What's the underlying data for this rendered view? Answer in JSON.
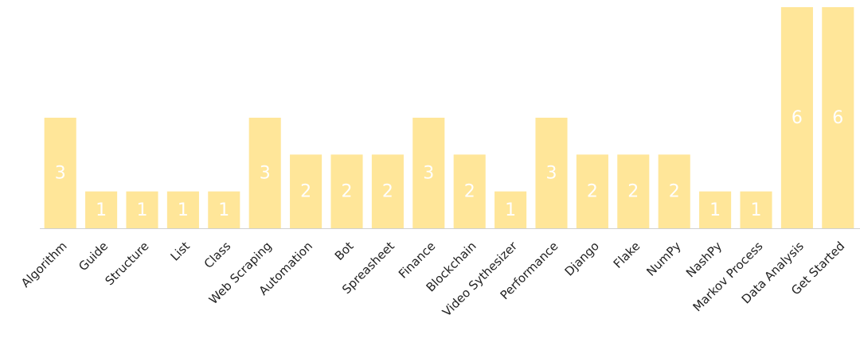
{
  "chart_data": {
    "type": "bar",
    "categories": [
      "Algorithm",
      "Guide",
      "Structure",
      "List",
      "Class",
      "Web Scraping",
      "Automation",
      "Bot",
      "Spreasheet",
      "Finance",
      "Blockchain",
      "Video Sythesizer",
      "Performance",
      "Django",
      "Flake",
      "NumPy",
      "NashPy",
      "Markov Process",
      "Data Analysis",
      "Get Started"
    ],
    "values": [
      3,
      1,
      1,
      1,
      1,
      3,
      2,
      2,
      2,
      3,
      2,
      1,
      3,
      2,
      2,
      2,
      1,
      1,
      6,
      6
    ],
    "color": "#ffe699",
    "ylim": [
      0,
      6
    ]
  }
}
